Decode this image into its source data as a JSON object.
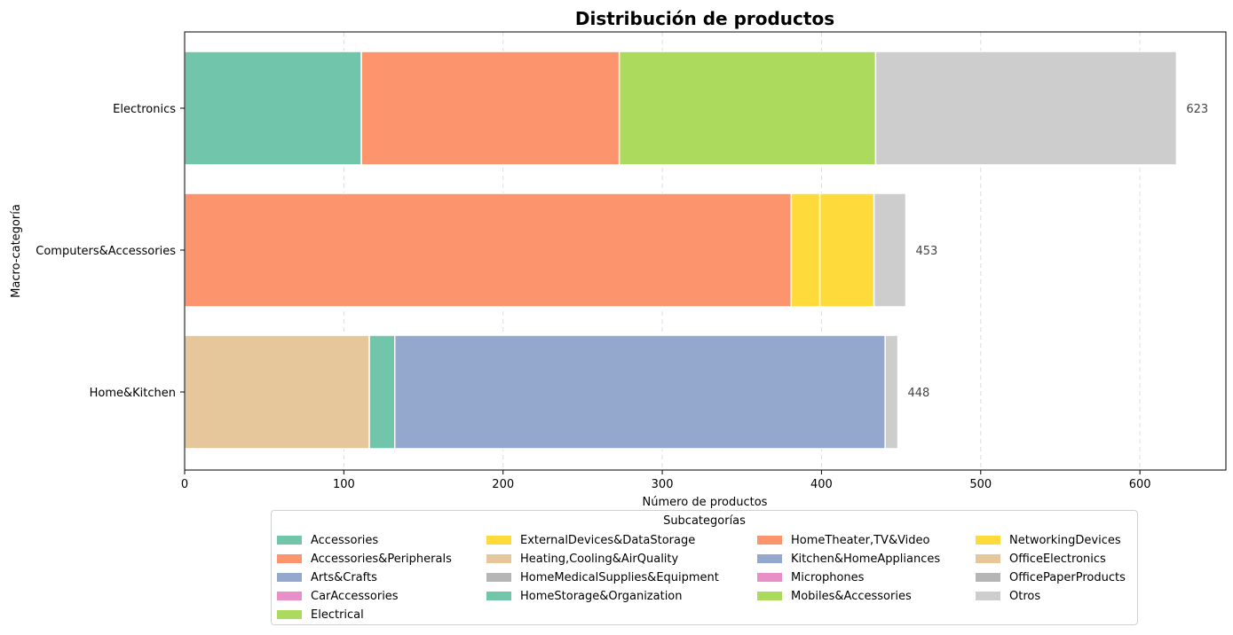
{
  "chart_data": {
    "type": "bar",
    "orientation": "horizontal",
    "stacked": true,
    "title": "Distribución de productos",
    "xlabel": "Número de productos",
    "ylabel": "Macro-categoría",
    "xlim": [
      0,
      654
    ],
    "xticks": [
      0,
      100,
      200,
      300,
      400,
      500,
      600
    ],
    "grid": "x-dashed",
    "categories": [
      "Electronics",
      "Computers&Accessories",
      "Home&Kitchen"
    ],
    "totals": [
      623,
      453,
      448
    ],
    "colors": {
      "teal": "#71c5aa",
      "orange": "#fc946e",
      "blue": "#94a7cc",
      "pink": "#e78fc6",
      "green": "#abda5d",
      "yellow": "#feda3a",
      "tan": "#e5c79b",
      "gray": "#b5b5b5",
      "lightgray": "#cdcdcd"
    },
    "stacks": [
      [
        {
          "name": "Accessories",
          "value": 111
        },
        {
          "name": "HomeTheater,TV&Video",
          "value": 162
        },
        {
          "name": "Mobiles&Accessories",
          "value": 161
        },
        {
          "name": "Otros",
          "value": 189
        }
      ],
      [
        {
          "name": "Accessories&Peripherals",
          "value": 381
        },
        {
          "name": "ExternalDevices&DataStorage",
          "value": 18
        },
        {
          "name": "NetworkingDevices",
          "value": 34
        },
        {
          "name": "Otros",
          "value": 20
        }
      ],
      [
        {
          "name": "Heating,Cooling&AirQuality",
          "value": 116
        },
        {
          "name": "HomeStorage&Organization",
          "value": 16
        },
        {
          "name": "Kitchen&HomeAppliances",
          "value": 308
        },
        {
          "name": "Otros",
          "value": 8
        }
      ]
    ],
    "legend": {
      "title": "Subcategorías",
      "placement": "below",
      "columns": [
        [
          {
            "label": "Accessories",
            "color": "#71c5aa"
          },
          {
            "label": "Accessories&Peripherals",
            "color": "#fc946e"
          },
          {
            "label": "Arts&Crafts",
            "color": "#94a7cc"
          },
          {
            "label": "CarAccessories",
            "color": "#e78fc6"
          },
          {
            "label": "Electrical",
            "color": "#abda5d"
          }
        ],
        [
          {
            "label": "ExternalDevices&DataStorage",
            "color": "#feda3a"
          },
          {
            "label": "Heating,Cooling&AirQuality",
            "color": "#e5c79b"
          },
          {
            "label": "HomeMedicalSupplies&Equipment",
            "color": "#b5b5b5"
          },
          {
            "label": "HomeStorage&Organization",
            "color": "#71c5aa"
          }
        ],
        [
          {
            "label": "HomeTheater,TV&Video",
            "color": "#fc946e"
          },
          {
            "label": "Kitchen&HomeAppliances",
            "color": "#94a7cc"
          },
          {
            "label": "Microphones",
            "color": "#e78fc6"
          },
          {
            "label": "Mobiles&Accessories",
            "color": "#abda5d"
          }
        ],
        [
          {
            "label": "NetworkingDevices",
            "color": "#feda3a"
          },
          {
            "label": "OfficeElectronics",
            "color": "#e5c79b"
          },
          {
            "label": "OfficePaperProducts",
            "color": "#b5b5b5"
          },
          {
            "label": "Otros",
            "color": "#cdcdcd"
          }
        ]
      ]
    }
  }
}
